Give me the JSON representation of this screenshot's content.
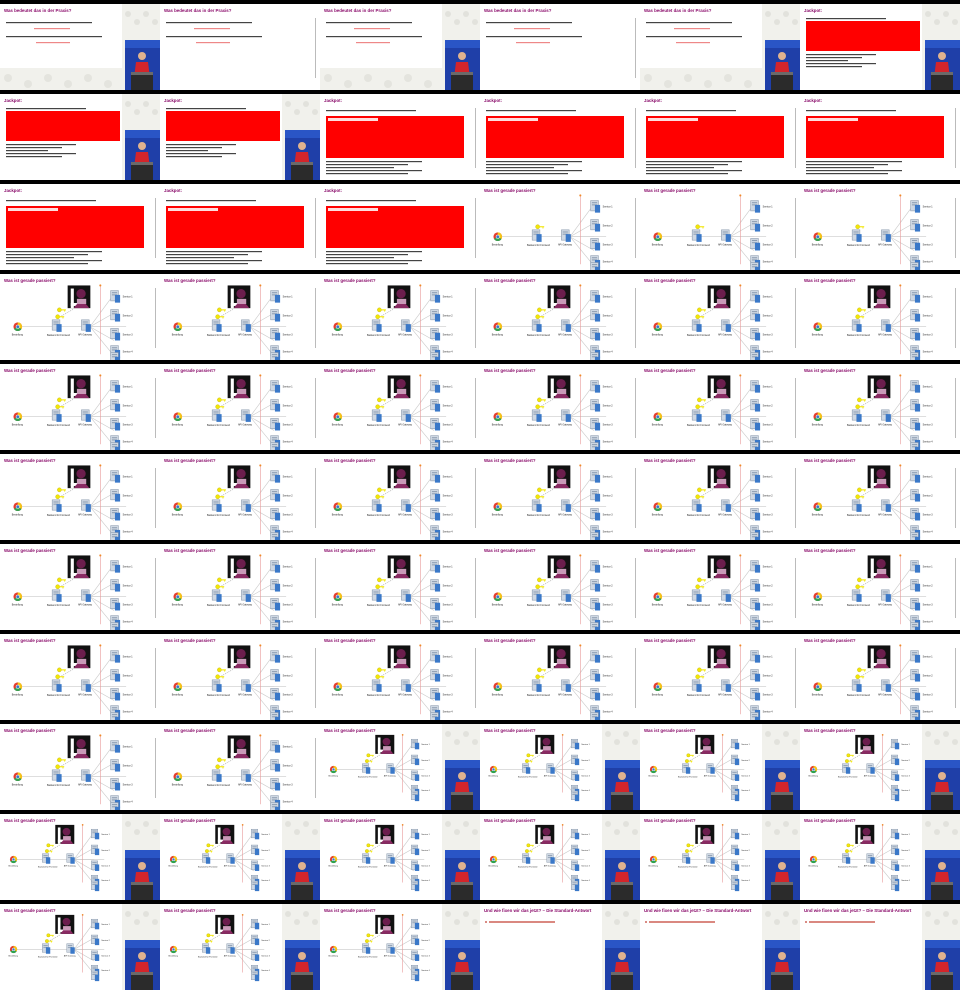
{
  "titles": {
    "intro": "Was bedeutet das in der Praxis?",
    "jackpot": "Jackpot:",
    "passiert": "Was ist gerade passiert?",
    "final": "Und wie fixen wir das jetzt? – Die Standard-Antwort"
  },
  "labels": {
    "browser": "Bestellung",
    "bff": "Backend for Frontend",
    "gateway": "API Gateway",
    "services": [
      "Service 1",
      "Service 2",
      "Service 3",
      "Service 4"
    ]
  },
  "colors": {
    "title": "#8a0b6a",
    "redact": "#ff0000",
    "stage": "#1f3fa8",
    "shirt": "#d3252b",
    "key": "#f2e60a",
    "server": "#3a78c8"
  },
  "rows": [
    [
      "intro-stage",
      "intro",
      "intro-stage",
      "intro",
      "intro-stage",
      "jackpot-a-stage"
    ],
    [
      "jackpot-a-stage",
      "jackpot-a-stage",
      "jackpot-b",
      "jackpot-b",
      "jackpot-b",
      "jackpot-b"
    ],
    [
      "jackpot-b",
      "jackpot-b",
      "jackpot-b",
      "diagram-basic",
      "diagram-basic",
      "diagram-basic"
    ],
    [
      "diagram-attack",
      "diagram-attack",
      "diagram-attack",
      "diagram-attack",
      "diagram-attack",
      "diagram-attack"
    ],
    [
      "diagram-attack",
      "diagram-attack",
      "diagram-attack",
      "diagram-attack",
      "diagram-attack",
      "diagram-attack"
    ],
    [
      "diagram-attack",
      "diagram-attack",
      "diagram-attack",
      "diagram-attack",
      "diagram-attack",
      "diagram-attack"
    ],
    [
      "diagram-attack",
      "diagram-attack",
      "diagram-attack",
      "diagram-attack",
      "diagram-attack",
      "diagram-attack"
    ],
    [
      "diagram-attack",
      "diagram-attack",
      "diagram-attack",
      "diagram-attack",
      "diagram-attack",
      "diagram-attack"
    ],
    [
      "diagram-attack",
      "diagram-attack",
      "small-diagram-stage",
      "small-diagram-stage",
      "small-diagram-stage",
      "small-diagram-stage"
    ],
    [
      "small-diagram-stage",
      "small-diagram-stage",
      "small-diagram-stage",
      "small-diagram-stage",
      "small-diagram-stage",
      "small-diagram-stage"
    ],
    [
      "small-diagram-stage",
      "small-diagram-stage",
      "small-diagram-stage",
      "final-stage",
      "final-stage",
      "final-stage"
    ]
  ]
}
